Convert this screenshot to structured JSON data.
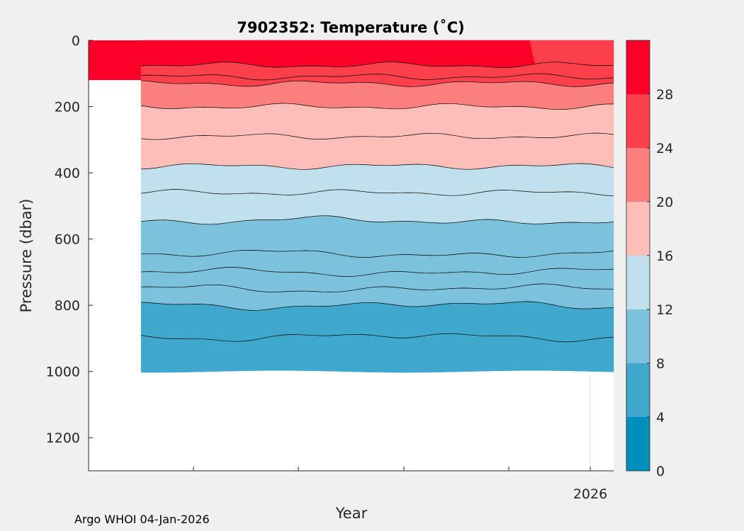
{
  "chart_data": {
    "type": "contour",
    "title": "7902352:  Temperature (˚C)",
    "xlabel": "Year",
    "ylabel": "Pressure (dbar)",
    "credit": "Argo WHOI 04-Jan-2026",
    "x_ticks": [
      "",
      "",
      "",
      "",
      "",
      "2026"
    ],
    "y_ticks": [
      0,
      200,
      400,
      600,
      800,
      1000,
      1200
    ],
    "ylim": [
      0,
      1300
    ],
    "grid": false,
    "colorbar": {
      "ticks": [
        0,
        4,
        8,
        12,
        16,
        20,
        24,
        28
      ],
      "range": [
        0,
        32
      ],
      "bands": [
        {
          "from": 0,
          "to": 4,
          "color": "#008fbd"
        },
        {
          "from": 4,
          "to": 8,
          "color": "#3fa8cc"
        },
        {
          "from": 8,
          "to": 12,
          "color": "#7cc2dc"
        },
        {
          "from": 12,
          "to": 16,
          "color": "#bfe0ec"
        },
        {
          "from": 16,
          "to": 20,
          "color": "#fdbdb8"
        },
        {
          "from": 20,
          "to": 24,
          "color": "#fb7f7d"
        },
        {
          "from": 24,
          "to": 28,
          "color": "#fb3f4b"
        },
        {
          "from": 28,
          "to": 32,
          "color": "#fc0029"
        }
      ]
    },
    "isotherm_depths_dbar": [
      {
        "temp": 28,
        "depth": 75
      },
      {
        "temp": 26,
        "depth": 110
      },
      {
        "temp": 24,
        "depth": 130
      },
      {
        "temp": 20,
        "depth": 200
      },
      {
        "temp": 18,
        "depth": 290
      },
      {
        "temp": 16,
        "depth": 380
      },
      {
        "temp": 14,
        "depth": 460
      },
      {
        "temp": 12,
        "depth": 545
      },
      {
        "temp": 11,
        "depth": 645
      },
      {
        "temp": 10,
        "depth": 700
      },
      {
        "temp": 9,
        "depth": 750
      },
      {
        "temp": 8,
        "depth": 800
      },
      {
        "temp": 7,
        "depth": 895
      }
    ],
    "profile_bottom_dbar": 1000,
    "data_start_x_fraction": 0.1,
    "warm_surface_end_x_fraction": 0.84
  }
}
